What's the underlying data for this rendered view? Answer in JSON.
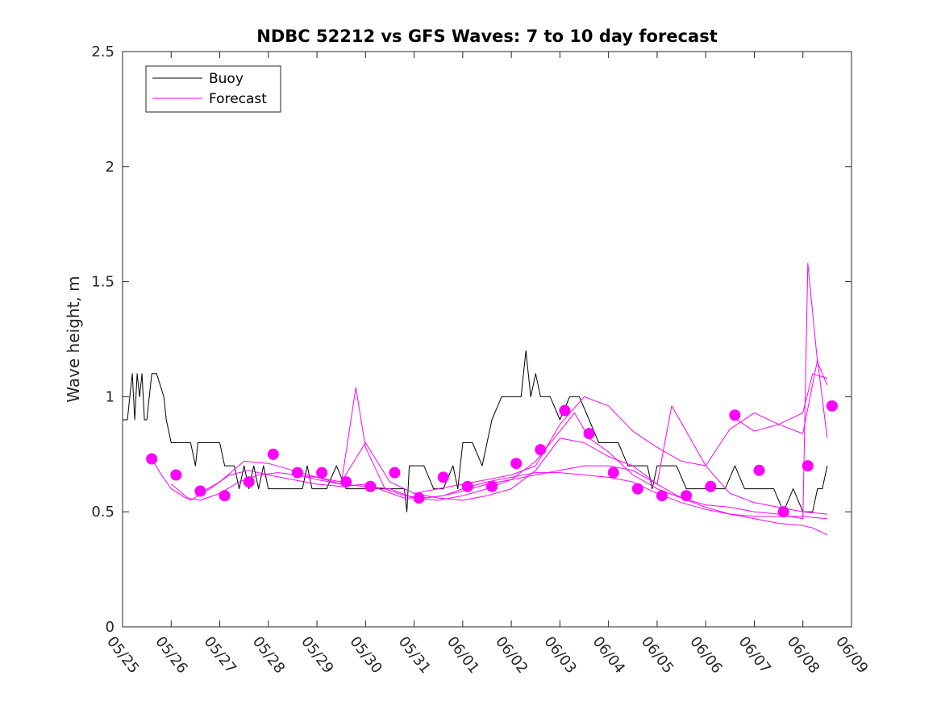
{
  "chart_data": {
    "type": "line",
    "title": "NDBC 52212 vs GFS Waves: 7 to 10 day forecast",
    "xlabel": "",
    "ylabel": "Wave height, m",
    "xlim": [
      "05/25",
      "06/09"
    ],
    "ylim": [
      0,
      2.5
    ],
    "yticks": [
      {
        "v": 0,
        "label": "0"
      },
      {
        "v": 0.5,
        "label": "0.5"
      },
      {
        "v": 1,
        "label": "1"
      },
      {
        "v": 1.5,
        "label": "1.5"
      },
      {
        "v": 2,
        "label": "2"
      },
      {
        "v": 2.5,
        "label": "2.5"
      }
    ],
    "xticks": [
      "05/25",
      "05/26",
      "05/27",
      "05/28",
      "05/29",
      "05/30",
      "05/31",
      "06/01",
      "06/02",
      "06/03",
      "06/04",
      "06/05",
      "06/06",
      "06/07",
      "06/08",
      "06/09"
    ],
    "grid": false,
    "legend": {
      "placement": "top-left",
      "entries": [
        "Buoy",
        "Forecast"
      ]
    },
    "colors": {
      "buoy": "#000000",
      "forecast": "#ff00ff",
      "axes": "#262626"
    },
    "series": [
      {
        "name": "Buoy",
        "kind": "line",
        "color": "#000000",
        "x": [
          0,
          0.1,
          0.15,
          0.2,
          0.25,
          0.3,
          0.35,
          0.4,
          0.45,
          0.5,
          0.6,
          0.7,
          0.85,
          0.9,
          1.0,
          1.1,
          1.2,
          1.3,
          1.4,
          1.5,
          1.55,
          1.6,
          1.7,
          1.8,
          1.9,
          2.0,
          2.1,
          2.2,
          2.3,
          2.4,
          2.5,
          2.6,
          2.7,
          2.8,
          2.9,
          3.0,
          3.1,
          3.2,
          3.3,
          3.4,
          3.5,
          3.6,
          3.7,
          3.8,
          3.9,
          4.0,
          4.2,
          4.4,
          4.6,
          4.8,
          5.0,
          5.2,
          5.4,
          5.6,
          5.8,
          5.85,
          5.9,
          6.0,
          6.2,
          6.4,
          6.6,
          6.8,
          6.9,
          7.0,
          7.2,
          7.4,
          7.6,
          7.8,
          8.0,
          8.2,
          8.3,
          8.4,
          8.5,
          8.6,
          8.8,
          9.0,
          9.2,
          9.4,
          9.6,
          9.8,
          10.0,
          10.2,
          10.4,
          10.6,
          10.8,
          10.9,
          11.0,
          11.2,
          11.4,
          11.6,
          11.8,
          12.0,
          12.2,
          12.4,
          12.6,
          12.8,
          13.0,
          13.2,
          13.4,
          13.6,
          13.8,
          14.0,
          14.2,
          14.3,
          14.4,
          14.5
        ],
        "y": [
          0.9,
          0.9,
          1.0,
          1.1,
          0.9,
          1.1,
          1.0,
          1.1,
          0.9,
          0.9,
          1.1,
          1.1,
          1.0,
          0.9,
          0.8,
          0.8,
          0.8,
          0.8,
          0.8,
          0.7,
          0.8,
          0.8,
          0.8,
          0.8,
          0.8,
          0.8,
          0.7,
          0.7,
          0.7,
          0.6,
          0.7,
          0.6,
          0.7,
          0.6,
          0.7,
          0.6,
          0.6,
          0.6,
          0.6,
          0.6,
          0.6,
          0.6,
          0.6,
          0.7,
          0.6,
          0.6,
          0.6,
          0.7,
          0.6,
          0.6,
          0.6,
          0.6,
          0.6,
          0.6,
          0.6,
          0.5,
          0.7,
          0.7,
          0.7,
          0.6,
          0.6,
          0.7,
          0.6,
          0.8,
          0.8,
          0.7,
          0.9,
          1.0,
          1.0,
          1.0,
          1.2,
          1.0,
          1.1,
          1.0,
          1.0,
          0.9,
          1.0,
          1.0,
          0.9,
          0.8,
          0.8,
          0.8,
          0.7,
          0.7,
          0.7,
          0.6,
          0.7,
          0.7,
          0.7,
          0.6,
          0.6,
          0.6,
          0.6,
          0.6,
          0.7,
          0.6,
          0.6,
          0.6,
          0.6,
          0.5,
          0.6,
          0.5,
          0.5,
          0.6,
          0.6,
          0.7
        ]
      },
      {
        "name": "Forecast",
        "kind": "line",
        "color": "#ff00ff",
        "x": [
          0.6,
          0.8,
          1.0,
          1.3,
          1.6,
          2.0,
          2.4,
          2.8,
          3.2,
          3.6,
          4.0,
          4.5,
          5.0,
          5.5,
          6.0,
          6.5,
          7.0,
          7.5,
          8.0,
          8.5,
          9.0,
          9.3,
          9.6,
          10.0,
          10.5,
          11.0,
          11.5,
          12.0,
          12.5,
          13.0,
          13.5,
          14.0,
          14.1,
          14.3,
          14.5
        ],
        "y": [
          0.73,
          0.66,
          0.6,
          0.56,
          0.55,
          0.58,
          0.63,
          0.66,
          0.67,
          0.66,
          0.64,
          0.62,
          0.61,
          0.6,
          0.56,
          0.55,
          0.57,
          0.6,
          0.64,
          0.72,
          0.85,
          0.93,
          0.82,
          0.76,
          0.66,
          0.6,
          0.56,
          0.53,
          0.52,
          0.5,
          0.49,
          0.47,
          1.58,
          1.15,
          1.05
        ]
      },
      {
        "name": "",
        "kind": "line",
        "color": "#ff00ff",
        "x": [
          1.0,
          1.4,
          1.8,
          2.2,
          2.6,
          3.0,
          3.5,
          4.0,
          4.5,
          5.0,
          5.4,
          5.8,
          6.2,
          6.6,
          7.0,
          7.5,
          8.0,
          8.5,
          9.0,
          9.5,
          10.0,
          10.5,
          11.0,
          11.5,
          12.0,
          12.5,
          13.0,
          13.5,
          14.0,
          14.2,
          14.5
        ],
        "y": [
          0.62,
          0.55,
          0.6,
          0.66,
          0.68,
          0.66,
          0.64,
          0.62,
          0.61,
          0.62,
          0.59,
          0.56,
          0.56,
          0.57,
          0.59,
          0.62,
          0.64,
          0.66,
          0.68,
          0.7,
          0.7,
          0.68,
          0.62,
          0.56,
          0.52,
          0.49,
          0.47,
          0.45,
          0.44,
          0.43,
          0.4
        ]
      },
      {
        "name": "",
        "kind": "line",
        "color": "#ff00ff",
        "x": [
          1.5,
          2.0,
          2.5,
          3.0,
          3.5,
          4.0,
          4.5,
          4.8,
          5.0,
          5.4,
          5.8,
          6.2,
          6.6,
          7.0,
          7.5,
          8.0,
          8.5,
          9.0,
          9.5,
          10.0,
          10.5,
          11.0,
          11.5,
          12.0,
          12.5,
          13.0,
          13.5,
          14.0,
          14.5
        ],
        "y": [
          0.57,
          0.63,
          0.72,
          0.71,
          0.68,
          0.65,
          0.62,
          1.04,
          0.78,
          0.6,
          0.57,
          0.56,
          0.57,
          0.6,
          0.63,
          0.65,
          0.67,
          0.67,
          0.66,
          0.65,
          0.63,
          0.58,
          0.54,
          0.51,
          0.49,
          0.48,
          0.48,
          0.48,
          0.47
        ]
      },
      {
        "name": "",
        "kind": "line",
        "color": "#ff00ff",
        "x": [
          3.5,
          4.0,
          4.5,
          5.0,
          5.5,
          6.0,
          6.5,
          7.0,
          7.5,
          8.0,
          8.5,
          9.0,
          9.5,
          10.0,
          10.5,
          11.0,
          11.3,
          11.6,
          12.0,
          12.5,
          13.0,
          13.5,
          14.0,
          14.5
        ],
        "y": [
          0.66,
          0.65,
          0.63,
          0.8,
          0.63,
          0.58,
          0.56,
          0.55,
          0.57,
          0.6,
          0.68,
          0.82,
          0.8,
          0.74,
          0.7,
          0.62,
          0.96,
          0.85,
          0.7,
          0.58,
          0.54,
          0.52,
          0.5,
          0.49
        ]
      },
      {
        "name": "",
        "kind": "line",
        "color": "#ff00ff",
        "x": [
          6.0,
          6.5,
          7.0,
          7.5,
          8.0,
          8.5,
          9.0,
          9.5,
          10.0,
          10.5,
          11.0,
          11.5,
          12.0,
          12.5,
          13.0,
          13.5,
          14.0,
          14.3,
          14.5
        ],
        "y": [
          0.58,
          0.6,
          0.62,
          0.64,
          0.66,
          0.7,
          0.88,
          1.0,
          0.96,
          0.85,
          0.78,
          0.72,
          0.7,
          0.86,
          0.93,
          0.88,
          0.84,
          1.16,
          0.82
        ]
      },
      {
        "name": "",
        "kind": "line",
        "color": "#ff00ff",
        "x": [
          12.5,
          13.0,
          13.5,
          14.0,
          14.2,
          14.5
        ],
        "y": [
          0.92,
          0.85,
          0.88,
          0.93,
          1.1,
          1.08
        ]
      },
      {
        "name": "",
        "kind": "scatter",
        "color": "#ff00ff",
        "x": [
          0.6,
          1.1,
          1.6,
          2.1,
          2.6,
          3.1,
          3.6,
          4.1,
          4.6,
          5.1,
          5.6,
          6.1,
          6.6,
          7.1,
          7.6,
          8.1,
          8.6,
          9.1,
          9.6,
          10.1,
          10.6,
          11.1,
          11.6,
          12.1,
          12.6,
          13.1,
          13.6,
          14.1,
          14.6
        ],
        "y": [
          0.73,
          0.66,
          0.59,
          0.57,
          0.63,
          0.75,
          0.67,
          0.67,
          0.63,
          0.61,
          0.67,
          0.56,
          0.65,
          0.61,
          0.61,
          0.71,
          0.77,
          0.94,
          0.84,
          0.67,
          0.6,
          0.57,
          0.57,
          0.61,
          0.92,
          0.68,
          0.5,
          0.7,
          0.96
        ]
      }
    ]
  }
}
